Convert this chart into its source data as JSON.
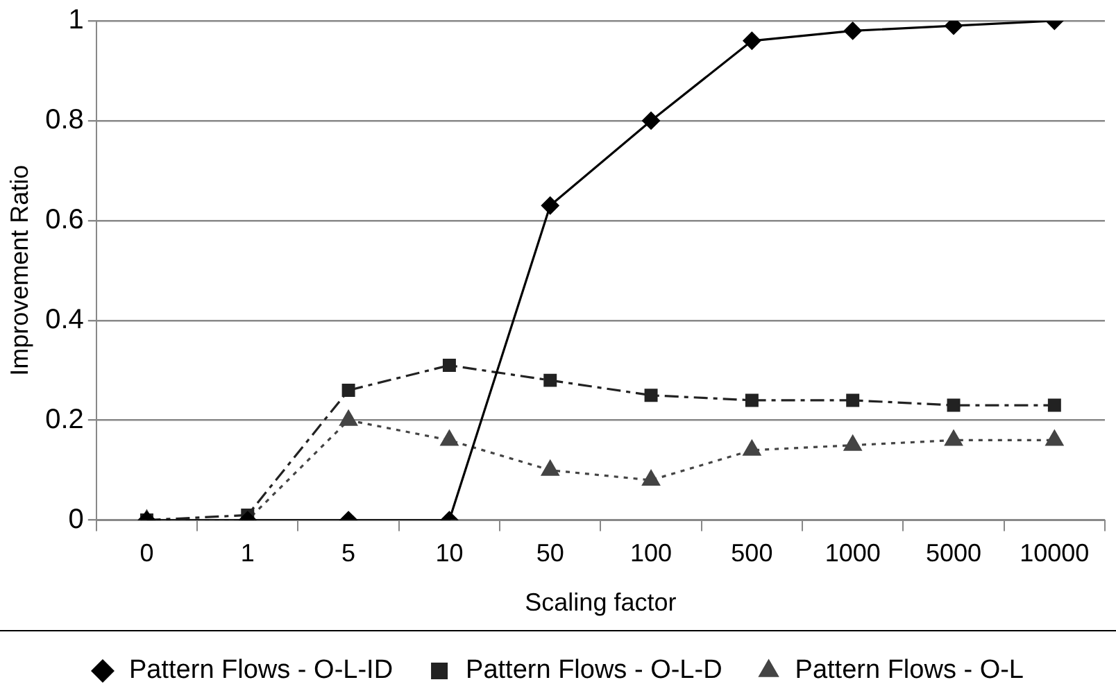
{
  "chart_data": {
    "type": "line",
    "xlabel": "Scaling factor",
    "ylabel": "Improvement Ratio",
    "categories": [
      "0",
      "1",
      "5",
      "10",
      "50",
      "100",
      "500",
      "1000",
      "5000",
      "10000"
    ],
    "ylim": [
      0,
      1
    ],
    "yticks": [
      0,
      0.2,
      0.4,
      0.6,
      0.8,
      1
    ],
    "grid": "y",
    "legend": "bottom",
    "series": [
      {
        "name": "Pattern Flows - O-L-ID",
        "color": "#000000",
        "marker": "diamond",
        "line_style": "solid",
        "values": [
          0,
          0,
          0,
          0,
          0.63,
          0.8,
          0.96,
          0.98,
          0.99,
          1.0
        ]
      },
      {
        "name": "Pattern Flows - O-L-D",
        "color": "#222222",
        "marker": "square",
        "line_style": "dashed",
        "values": [
          0,
          0.01,
          0.26,
          0.31,
          0.28,
          0.25,
          0.24,
          0.24,
          0.23,
          0.23
        ]
      },
      {
        "name": "Pattern Flows - O-L",
        "color": "#444444",
        "marker": "triangle",
        "line_style": "dotted",
        "values": [
          0,
          0,
          0.2,
          0.16,
          0.1,
          0.08,
          0.14,
          0.15,
          0.16,
          0.16
        ]
      }
    ]
  }
}
